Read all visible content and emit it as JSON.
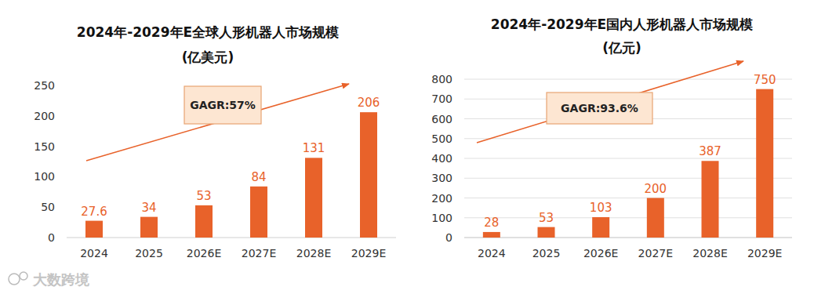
{
  "chart_data": [
    {
      "type": "bar",
      "title": "2024年-2029年E全球人形机器人市场规模",
      "subtitle": "(亿美元)",
      "categories": [
        "2024",
        "2025",
        "2026E",
        "2027E",
        "2028E",
        "2029E"
      ],
      "values": [
        27.6,
        34,
        53,
        84,
        131,
        206
      ],
      "color": "#e8622a",
      "ylim": [
        0,
        250
      ],
      "yticks": [
        0,
        50,
        100,
        150,
        200,
        250
      ],
      "grid": false,
      "data_labels": true,
      "annotations": [
        "GAGR:57%"
      ]
    },
    {
      "type": "bar",
      "title": "2024年-2029年E国内人形机器人市场规模",
      "subtitle": "(亿元)",
      "categories": [
        "2024",
        "2025",
        "2026E",
        "2027E",
        "2028E",
        "2029E"
      ],
      "values": [
        28,
        53,
        103,
        200,
        387,
        750
      ],
      "color": "#e8622a",
      "ylim": [
        0,
        800
      ],
      "yticks": [
        0,
        100,
        200,
        300,
        400,
        500,
        600,
        700,
        800
      ],
      "grid": true,
      "data_labels": true,
      "annotations": [
        "GAGR:93.6%"
      ]
    }
  ],
  "watermark": "大数跨境"
}
